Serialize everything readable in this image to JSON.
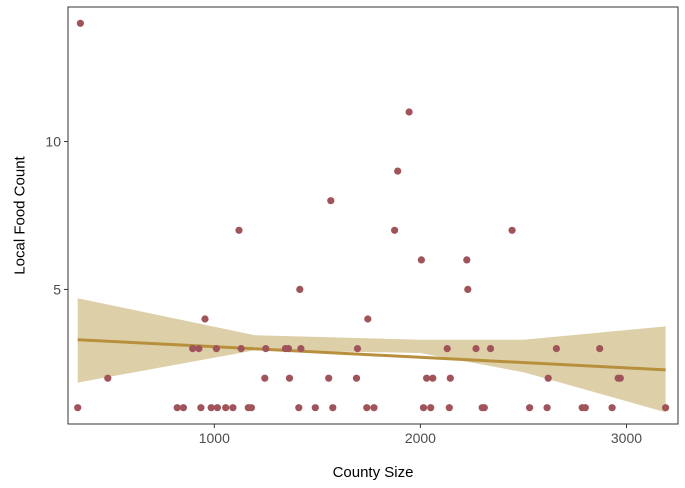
{
  "chart_data": {
    "type": "scatter",
    "title": "",
    "xlabel": "County Size",
    "ylabel": "Local Food Count",
    "xlim": [
      290,
      3250
    ],
    "ylim": [
      0.45,
      14.55
    ],
    "x_ticks": [
      1000,
      2000,
      3000
    ],
    "x_tick_labels": [
      "1000",
      "2000",
      "3000"
    ],
    "y_ticks": [
      5,
      10
    ],
    "y_tick_labels": [
      "5",
      "10"
    ],
    "grid": false,
    "legend": "none",
    "colors": {
      "points": "#A0545A",
      "fit_line": "#B8903D",
      "confidence_band": "#DDD0A8",
      "panel_border": "#333333"
    },
    "series": [
      {
        "values": [
          [
            350,
            14
          ],
          [
            337,
            1
          ],
          [
            483,
            2
          ],
          [
            820,
            1
          ],
          [
            850,
            1
          ],
          [
            895,
            3
          ],
          [
            925,
            3
          ],
          [
            935,
            1
          ],
          [
            955,
            4
          ],
          [
            985,
            1
          ],
          [
            1010,
            3
          ],
          [
            1015,
            1
          ],
          [
            1055,
            1
          ],
          [
            1090,
            1
          ],
          [
            1120,
            7
          ],
          [
            1130,
            3
          ],
          [
            1165,
            1
          ],
          [
            1180,
            1
          ],
          [
            1245,
            2
          ],
          [
            1250,
            3
          ],
          [
            1345,
            3
          ],
          [
            1360,
            3
          ],
          [
            1365,
            2
          ],
          [
            1410,
            1
          ],
          [
            1415,
            5
          ],
          [
            1420,
            3
          ],
          [
            1490,
            1
          ],
          [
            1555,
            2
          ],
          [
            1565,
            8
          ],
          [
            1575,
            1
          ],
          [
            1690,
            2
          ],
          [
            1695,
            3
          ],
          [
            1740,
            1
          ],
          [
            1745,
            4
          ],
          [
            1775,
            1
          ],
          [
            1875,
            7
          ],
          [
            1890,
            9
          ],
          [
            1945,
            11
          ],
          [
            2005,
            6
          ],
          [
            2015,
            1
          ],
          [
            2030,
            2
          ],
          [
            2050,
            1
          ],
          [
            2060,
            2
          ],
          [
            2130,
            3
          ],
          [
            2140,
            1
          ],
          [
            2145,
            2
          ],
          [
            2225,
            6
          ],
          [
            2230,
            5
          ],
          [
            2270,
            3
          ],
          [
            2300,
            1
          ],
          [
            2310,
            1
          ],
          [
            2340,
            3
          ],
          [
            2445,
            7
          ],
          [
            2530,
            1
          ],
          [
            2615,
            1
          ],
          [
            2620,
            2
          ],
          [
            2660,
            3
          ],
          [
            2785,
            1
          ],
          [
            2800,
            1
          ],
          [
            2870,
            3
          ],
          [
            2930,
            1
          ],
          [
            2960,
            2
          ],
          [
            2970,
            2
          ],
          [
            3190,
            1
          ]
        ]
      }
    ],
    "fit": {
      "method": "linear",
      "x": [
        337,
        3190
      ],
      "y": [
        3.3,
        2.28
      ]
    },
    "confidence_band": {
      "x": [
        337,
        1200,
        2000,
        2500,
        3190
      ],
      "lower": [
        1.85,
        2.95,
        2.85,
        2.2,
        0.85
      ],
      "upper": [
        4.7,
        3.45,
        3.3,
        3.3,
        3.75
      ]
    }
  }
}
